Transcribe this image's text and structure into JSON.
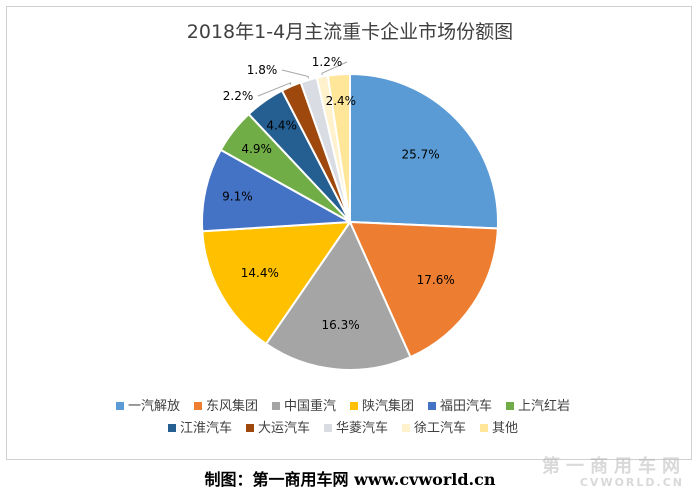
{
  "chart_data": {
    "type": "pie",
    "title": "2018年1-4月主流重卡企业市场份额图",
    "categories": [
      "一汽解放",
      "东风集团",
      "中国重汽",
      "陕汽集团",
      "福田汽车",
      "上汽红岩",
      "江淮汽车",
      "大运汽车",
      "华菱汽车",
      "徐工汽车",
      "其他"
    ],
    "values": [
      25.7,
      17.6,
      16.3,
      14.4,
      9.1,
      4.9,
      4.4,
      2.2,
      1.8,
      1.2,
      2.4
    ],
    "labels": [
      "25.7%",
      "17.6%",
      "16.3%",
      "14.4%",
      "9.1%",
      "4.9%",
      "4.4%",
      "2.2%",
      "1.8%",
      "1.2%",
      "2.4%"
    ],
    "colors": [
      "#5b9bd5",
      "#ed7d31",
      "#a5a5a5",
      "#ffc000",
      "#4472c4",
      "#70ad47",
      "#255e91",
      "#9e480e",
      "#d9dce3",
      "#fff2cc",
      "#ffe699"
    ],
    "legend_position": "bottom"
  },
  "footer": {
    "credit": "制图：第一商用车网 www.cvworld.cn"
  },
  "watermark": {
    "logo_text": "第一商用车网",
    "logo_sub": "CVWORLD.CN"
  }
}
